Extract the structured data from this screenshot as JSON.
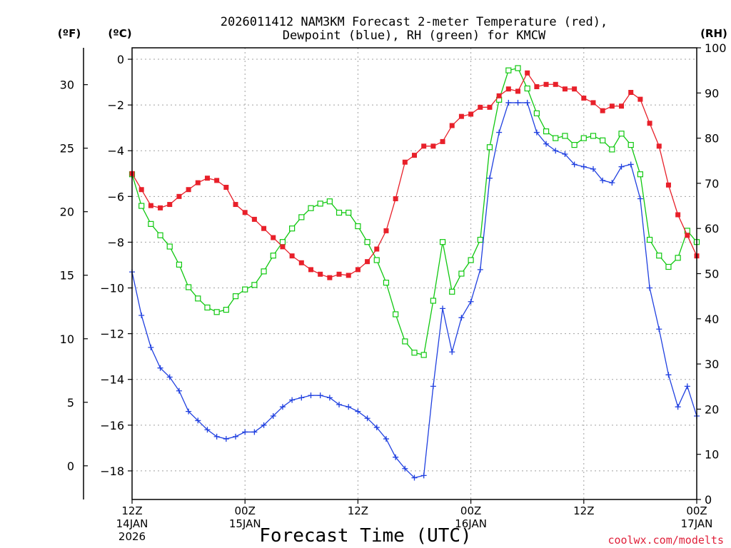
{
  "chart_data": {
    "type": "line",
    "title_line1": "2026011412 NAM3KM Forecast 2-meter Temperature (red),",
    "title_line2": "Dewpoint (blue), RH (green) for KMCW",
    "xlabel": "Forecast Time (UTC)",
    "credit": "coolwx.com/modelts",
    "units": {
      "fahrenheit": "(ºF)",
      "celsius": "(ºC)",
      "rh": "(RH)"
    },
    "x_range_hours": [
      0,
      60
    ],
    "y_left_range_c": [
      -19.25,
      0.5
    ],
    "y_right_range_rh": [
      0,
      100
    ],
    "y_celsius_ticks": [
      {
        "value": 0,
        "label": "0"
      },
      {
        "value": -2,
        "label": "−2"
      },
      {
        "value": -4,
        "label": "−4"
      },
      {
        "value": -6,
        "label": "−6"
      },
      {
        "value": -8,
        "label": "−8"
      },
      {
        "value": -10,
        "label": "−10"
      },
      {
        "value": -12,
        "label": "−12"
      },
      {
        "value": -14,
        "label": "−14"
      },
      {
        "value": -16,
        "label": "−16"
      },
      {
        "value": -18,
        "label": "−18"
      }
    ],
    "y_fahrenheit_ticks": [
      {
        "value": 30,
        "label": "30"
      },
      {
        "value": 25,
        "label": "25"
      },
      {
        "value": 20,
        "label": "20"
      },
      {
        "value": 15,
        "label": "15"
      },
      {
        "value": 10,
        "label": "10"
      },
      {
        "value": 5,
        "label": "5"
      },
      {
        "value": 0,
        "label": "0"
      }
    ],
    "y_rh_ticks": [
      {
        "value": 100,
        "label": "100"
      },
      {
        "value": 90,
        "label": "90"
      },
      {
        "value": 80,
        "label": "80"
      },
      {
        "value": 70,
        "label": "70"
      },
      {
        "value": 60,
        "label": "60"
      },
      {
        "value": 50,
        "label": "50"
      },
      {
        "value": 40,
        "label": "40"
      },
      {
        "value": 30,
        "label": "30"
      },
      {
        "value": 20,
        "label": "20"
      },
      {
        "value": 10,
        "label": "10"
      },
      {
        "value": 0,
        "label": "0"
      }
    ],
    "x_ticks": [
      {
        "hour": 0,
        "lines": [
          "12Z",
          "14JAN",
          "2026"
        ]
      },
      {
        "hour": 12,
        "lines": [
          "00Z",
          "15JAN"
        ]
      },
      {
        "hour": 24,
        "lines": [
          "12Z"
        ]
      },
      {
        "hour": 36,
        "lines": [
          "00Z",
          "16JAN"
        ]
      },
      {
        "hour": 48,
        "lines": [
          "12Z"
        ]
      },
      {
        "hour": 60,
        "lines": [
          "00Z",
          "17JAN"
        ]
      }
    ],
    "colors": {
      "temperature": "#e8202a",
      "dewpoint": "#2040e0",
      "rh": "#10c810"
    },
    "series": [
      {
        "name": "Temperature",
        "axis": "celsius",
        "marker": "filled-square",
        "values": [
          -5.0,
          -5.7,
          -6.4,
          -6.5,
          -6.35,
          -6.0,
          -5.7,
          -5.4,
          -5.2,
          -5.3,
          -5.6,
          -6.35,
          -6.7,
          -7.0,
          -7.4,
          -7.8,
          -8.2,
          -8.6,
          -8.9,
          -9.2,
          -9.4,
          -9.55,
          -9.4,
          -9.45,
          -9.2,
          -8.85,
          -8.3,
          -7.5,
          -6.1,
          -4.5,
          -4.2,
          -3.8,
          -3.8,
          -3.6,
          -2.9,
          -2.5,
          -2.4,
          -2.1,
          -2.1,
          -1.6,
          -1.3,
          -1.4,
          -0.6,
          -1.2,
          -1.1,
          -1.1,
          -1.3,
          -1.3,
          -1.7,
          -1.9,
          -2.25,
          -2.05,
          -2.05,
          -1.45,
          -1.75,
          -2.8,
          -3.8,
          -5.5,
          -6.8,
          -7.7,
          -8.6
        ]
      },
      {
        "name": "Dewpoint",
        "axis": "celsius",
        "marker": "plus",
        "values": [
          -9.3,
          -11.2,
          -12.6,
          -13.5,
          -13.9,
          -14.5,
          -15.4,
          -15.8,
          -16.2,
          -16.5,
          -16.6,
          -16.5,
          -16.3,
          -16.3,
          -16.0,
          -15.6,
          -15.2,
          -14.9,
          -14.8,
          -14.7,
          -14.7,
          -14.8,
          -15.1,
          -15.2,
          -15.4,
          -15.7,
          -16.1,
          -16.6,
          -17.4,
          -17.9,
          -18.3,
          -18.2,
          -14.3,
          -10.9,
          -12.8,
          -11.3,
          -10.6,
          -9.2,
          -5.2,
          -3.2,
          -1.9,
          -1.9,
          -1.9,
          -3.2,
          -3.7,
          -4.0,
          -4.15,
          -4.6,
          -4.7,
          -4.8,
          -5.3,
          -5.4,
          -4.7,
          -4.6,
          -6.1,
          -10.0,
          -11.8,
          -13.8,
          -15.2,
          -14.3,
          -15.6
        ]
      },
      {
        "name": "RH",
        "axis": "rh",
        "marker": "open-square",
        "values": [
          72.0,
          65.0,
          61.0,
          58.5,
          56.0,
          52.0,
          47.0,
          44.5,
          42.5,
          41.5,
          42.0,
          45.0,
          46.5,
          47.5,
          50.5,
          54.0,
          57.0,
          60.0,
          62.5,
          64.5,
          65.5,
          66.0,
          63.5,
          63.5,
          60.5,
          57.0,
          53.0,
          48.0,
          41.0,
          35.0,
          32.5,
          32.0,
          44.0,
          57.0,
          46.0,
          50.0,
          53.0,
          57.5,
          78.0,
          88.5,
          95.0,
          95.5,
          91.0,
          85.5,
          81.5,
          80.0,
          80.5,
          78.5,
          80.0,
          80.5,
          79.5,
          77.5,
          81.0,
          78.5,
          72.0,
          57.5,
          54.0,
          51.5,
          53.5,
          59.5,
          57.0
        ]
      }
    ]
  }
}
